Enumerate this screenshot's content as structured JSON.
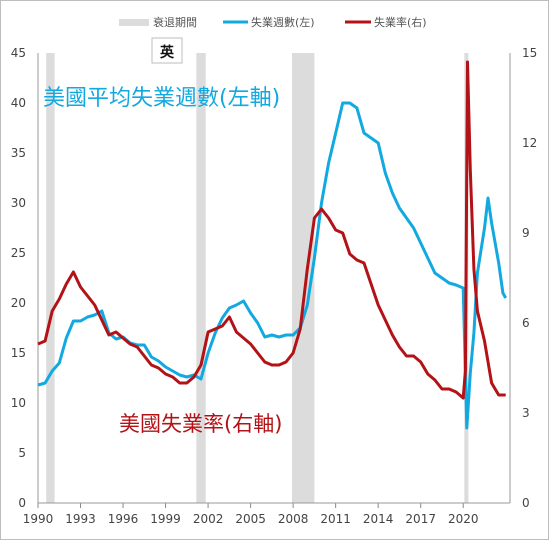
{
  "legend": {
    "recession_label": "衰退期間",
    "weeks_label": "失業週數(左)",
    "rate_label": "失業率(右)"
  },
  "badge": "英",
  "annotations": {
    "weeks": "美國平均失業週數(左軸)",
    "rate": "美國失業率(右軸)"
  },
  "colors": {
    "weeks": "#12a9e0",
    "rate": "#b31217",
    "recession": "#dcdcdc"
  },
  "chart_data": {
    "type": "line",
    "x_ticks": [
      "1990",
      "1993",
      "1996",
      "1999",
      "2002",
      "2005",
      "2008",
      "2011",
      "2014",
      "2017",
      "2020"
    ],
    "y_left": {
      "lim": [
        0,
        45
      ],
      "ticks": [
        "0",
        "5",
        "10",
        "15",
        "20",
        "25",
        "30",
        "35",
        "40",
        "45"
      ]
    },
    "y_right": {
      "lim": [
        0,
        15
      ],
      "ticks": [
        "0",
        "3",
        "6",
        "9",
        "12",
        "15"
      ]
    },
    "recessions": [
      [
        1990.58,
        1991.17
      ],
      [
        2001.17,
        2001.83
      ],
      [
        2007.92,
        2009.5
      ],
      [
        2020.08,
        2020.33
      ]
    ],
    "series": [
      {
        "name": "失業週數(左)",
        "axis": "left",
        "points": [
          [
            1990.0,
            11.8
          ],
          [
            1990.5,
            12.0
          ],
          [
            1991.0,
            13.2
          ],
          [
            1991.5,
            14.0
          ],
          [
            1992.0,
            16.5
          ],
          [
            1992.5,
            18.2
          ],
          [
            1993.0,
            18.2
          ],
          [
            1993.5,
            18.6
          ],
          [
            1994.0,
            18.8
          ],
          [
            1994.5,
            19.2
          ],
          [
            1995.0,
            17.0
          ],
          [
            1995.5,
            16.4
          ],
          [
            1996.0,
            16.6
          ],
          [
            1996.5,
            16.0
          ],
          [
            1997.0,
            15.8
          ],
          [
            1997.5,
            15.8
          ],
          [
            1998.0,
            14.6
          ],
          [
            1998.5,
            14.2
          ],
          [
            1999.0,
            13.6
          ],
          [
            1999.5,
            13.2
          ],
          [
            2000.0,
            12.8
          ],
          [
            2000.5,
            12.6
          ],
          [
            2001.0,
            12.8
          ],
          [
            2001.5,
            12.4
          ],
          [
            2002.0,
            15.0
          ],
          [
            2002.5,
            17.0
          ],
          [
            2003.0,
            18.5
          ],
          [
            2003.5,
            19.5
          ],
          [
            2004.0,
            19.8
          ],
          [
            2004.5,
            20.2
          ],
          [
            2005.0,
            19.0
          ],
          [
            2005.5,
            18.0
          ],
          [
            2006.0,
            16.6
          ],
          [
            2006.5,
            16.8
          ],
          [
            2007.0,
            16.6
          ],
          [
            2007.5,
            16.8
          ],
          [
            2008.0,
            16.8
          ],
          [
            2008.5,
            17.5
          ],
          [
            2009.0,
            19.8
          ],
          [
            2009.5,
            24.5
          ],
          [
            2010.0,
            30.0
          ],
          [
            2010.5,
            34.0
          ],
          [
            2011.0,
            37.0
          ],
          [
            2011.5,
            40.0
          ],
          [
            2012.0,
            40.0
          ],
          [
            2012.5,
            39.5
          ],
          [
            2013.0,
            37.0
          ],
          [
            2013.5,
            36.5
          ],
          [
            2014.0,
            36.0
          ],
          [
            2014.5,
            33.0
          ],
          [
            2015.0,
            31.0
          ],
          [
            2015.5,
            29.5
          ],
          [
            2016.0,
            28.5
          ],
          [
            2016.5,
            27.5
          ],
          [
            2017.0,
            26.0
          ],
          [
            2017.5,
            24.5
          ],
          [
            2018.0,
            23.0
          ],
          [
            2018.5,
            22.5
          ],
          [
            2019.0,
            22.0
          ],
          [
            2019.5,
            21.8
          ],
          [
            2020.0,
            21.5
          ],
          [
            2020.25,
            7.5
          ],
          [
            2020.5,
            13.0
          ],
          [
            2020.75,
            17.0
          ],
          [
            2021.0,
            23.0
          ],
          [
            2021.5,
            27.5
          ],
          [
            2021.75,
            30.5
          ],
          [
            2022.0,
            28.0
          ],
          [
            2022.5,
            24.0
          ],
          [
            2022.8,
            21.0
          ],
          [
            2023.0,
            20.5
          ]
        ]
      },
      {
        "name": "失業率(右)",
        "axis": "right",
        "points": [
          [
            1990.0,
            5.3
          ],
          [
            1990.5,
            5.4
          ],
          [
            1991.0,
            6.4
          ],
          [
            1991.5,
            6.8
          ],
          [
            1992.0,
            7.3
          ],
          [
            1992.5,
            7.7
          ],
          [
            1993.0,
            7.2
          ],
          [
            1993.5,
            6.9
          ],
          [
            1994.0,
            6.6
          ],
          [
            1994.5,
            6.1
          ],
          [
            1995.0,
            5.6
          ],
          [
            1995.5,
            5.7
          ],
          [
            1996.0,
            5.5
          ],
          [
            1996.5,
            5.3
          ],
          [
            1997.0,
            5.2
          ],
          [
            1997.5,
            4.9
          ],
          [
            1998.0,
            4.6
          ],
          [
            1998.5,
            4.5
          ],
          [
            1999.0,
            4.3
          ],
          [
            1999.5,
            4.2
          ],
          [
            2000.0,
            4.0
          ],
          [
            2000.5,
            4.0
          ],
          [
            2001.0,
            4.2
          ],
          [
            2001.5,
            4.6
          ],
          [
            2002.0,
            5.7
          ],
          [
            2002.5,
            5.8
          ],
          [
            2003.0,
            5.9
          ],
          [
            2003.5,
            6.2
          ],
          [
            2004.0,
            5.7
          ],
          [
            2004.5,
            5.5
          ],
          [
            2005.0,
            5.3
          ],
          [
            2005.5,
            5.0
          ],
          [
            2006.0,
            4.7
          ],
          [
            2006.5,
            4.6
          ],
          [
            2007.0,
            4.6
          ],
          [
            2007.5,
            4.7
          ],
          [
            2008.0,
            5.0
          ],
          [
            2008.5,
            5.8
          ],
          [
            2009.0,
            7.8
          ],
          [
            2009.5,
            9.5
          ],
          [
            2010.0,
            9.8
          ],
          [
            2010.5,
            9.5
          ],
          [
            2011.0,
            9.1
          ],
          [
            2011.5,
            9.0
          ],
          [
            2012.0,
            8.3
          ],
          [
            2012.5,
            8.1
          ],
          [
            2013.0,
            8.0
          ],
          [
            2013.5,
            7.3
          ],
          [
            2014.0,
            6.6
          ],
          [
            2014.5,
            6.1
          ],
          [
            2015.0,
            5.6
          ],
          [
            2015.5,
            5.2
          ],
          [
            2016.0,
            4.9
          ],
          [
            2016.5,
            4.9
          ],
          [
            2017.0,
            4.7
          ],
          [
            2017.5,
            4.3
          ],
          [
            2018.0,
            4.1
          ],
          [
            2018.5,
            3.8
          ],
          [
            2019.0,
            3.8
          ],
          [
            2019.5,
            3.7
          ],
          [
            2020.0,
            3.5
          ],
          [
            2020.15,
            4.4
          ],
          [
            2020.3,
            14.7
          ],
          [
            2020.5,
            11.1
          ],
          [
            2020.75,
            7.8
          ],
          [
            2021.0,
            6.4
          ],
          [
            2021.5,
            5.4
          ],
          [
            2022.0,
            4.0
          ],
          [
            2022.5,
            3.6
          ],
          [
            2023.0,
            3.6
          ]
        ]
      }
    ]
  }
}
